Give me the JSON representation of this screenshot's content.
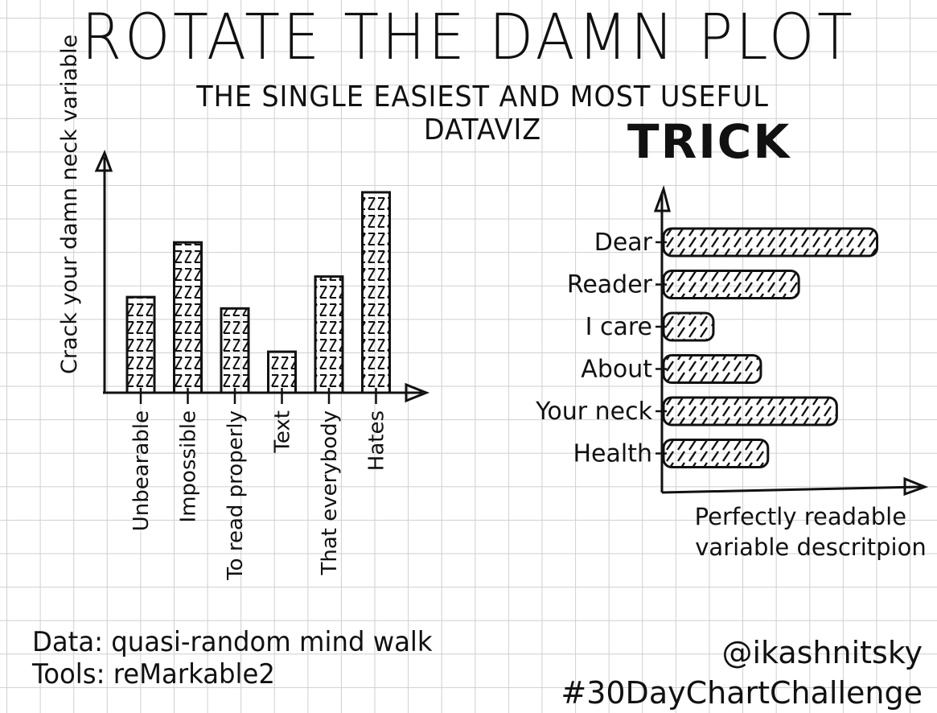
{
  "header": {
    "title": "ROTATE THE DAMN PLOT",
    "subtitle": "THE SINGLE EASIEST AND MOST USEFUL DATAVIZ",
    "subtitle_cont": "TRICK"
  },
  "chart_data": [
    {
      "type": "bar",
      "orientation": "vertical",
      "ylabel": "Crack your damn neck variable",
      "xlabel": "",
      "categories": [
        "Unbearable",
        "Impossible",
        "To read properly",
        "Text",
        "That everybody",
        "Hates"
      ],
      "values": [
        4.2,
        6.6,
        3.7,
        1.8,
        5.1,
        8.8
      ],
      "ylim": [
        0,
        10
      ],
      "grid": true,
      "fill": "hatched",
      "color": "#111111"
    },
    {
      "type": "bar",
      "orientation": "horizontal",
      "xlabel": "Perfectly readable variable descritpion",
      "ylabel": "",
      "categories": [
        "Dear",
        "Reader",
        "I care",
        "About",
        "Your neck",
        "Health"
      ],
      "values": [
        9.0,
        5.7,
        2.1,
        4.1,
        7.3,
        4.4
      ],
      "xlim": [
        0,
        10
      ],
      "grid": true,
      "fill": "hatched",
      "color": "#111111"
    }
  ],
  "footer": {
    "data_line": "Data: quasi-random mind walk",
    "tools_line": "Tools: reMarkable2",
    "handle": "@ikashnitsky",
    "hashtag": "#30DayChartChallenge"
  }
}
